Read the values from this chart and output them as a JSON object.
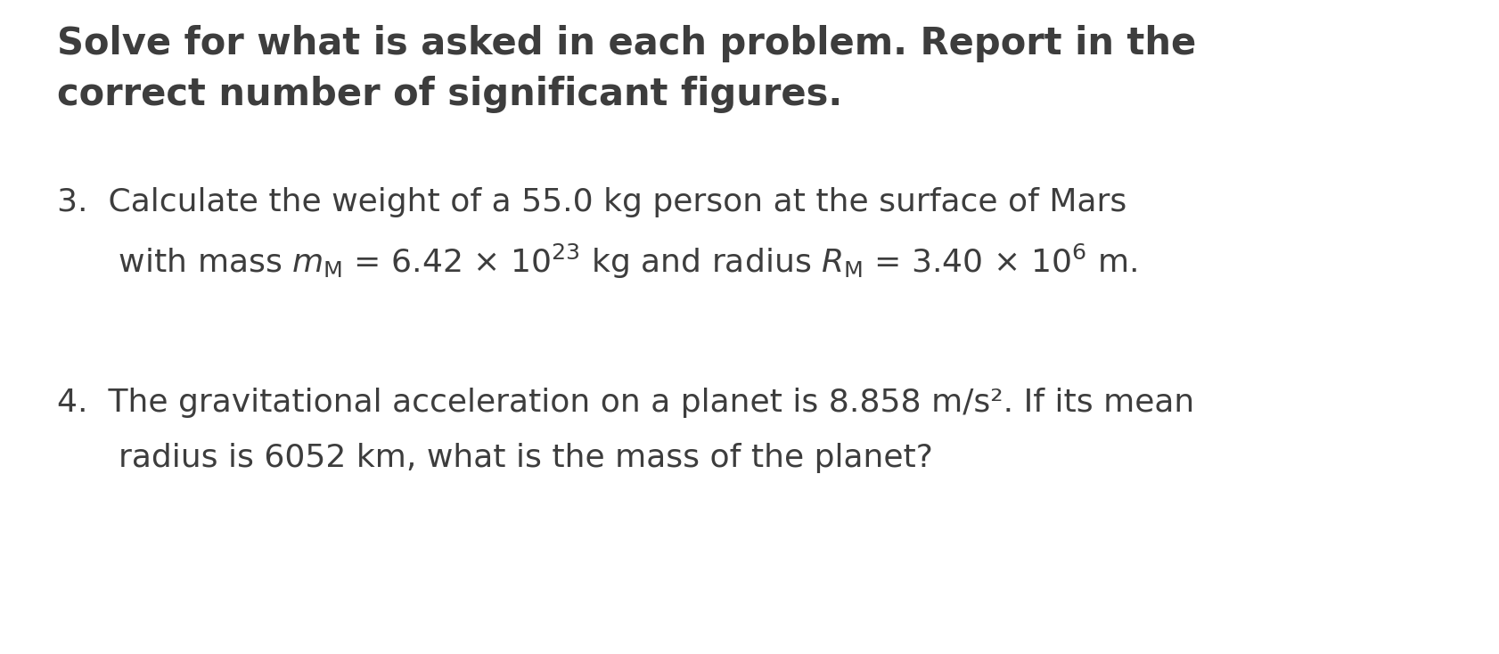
{
  "background_color": "#ffffff",
  "title_line1": "Solve for what is asked in each problem. Report in the",
  "title_line2": "correct number of significant figures.",
  "title_fontsize": 30,
  "title_color": "#3d3d3d",
  "body_fontsize": 26,
  "body_color": "#3d3d3d",
  "problem3_line1": "3.  Calculate the weight of a 55.0 kg person at the surface of Mars",
  "problem4_line1": "4.  The gravitational acceleration on a planet is 8.858 m/s². If its mean",
  "problem4_line2": "      radius is 6052 km, what is the mass of the planet?",
  "figsize": [
    16.83,
    7.34
  ],
  "dpi": 100
}
